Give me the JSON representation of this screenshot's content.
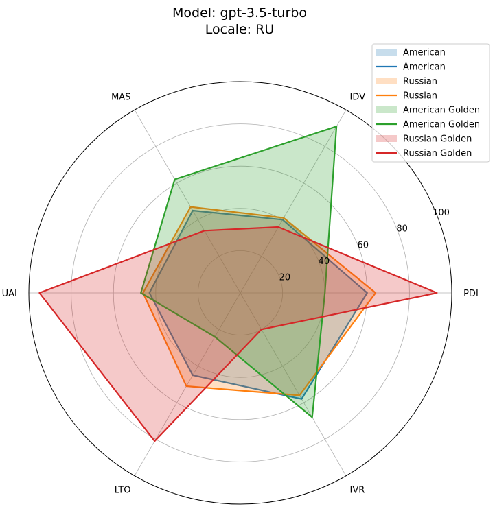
{
  "chart_data": {
    "type": "radar",
    "title_lines": [
      "Model: gpt-3.5-turbo",
      "Locale: RU"
    ],
    "axes": [
      "PDI",
      "IDV",
      "MAS",
      "UAI",
      "LTO",
      "IVR"
    ],
    "rlim": [
      0,
      100
    ],
    "r_ticks": [
      20,
      40,
      60,
      80,
      100
    ],
    "grid": true,
    "legend_position": "top-right",
    "series": [
      {
        "name": "American",
        "color": "#1f77b4",
        "values": [
          60,
          40,
          45,
          43,
          45,
          58
        ]
      },
      {
        "name": "Russian",
        "color": "#ff7f0e",
        "values": [
          64,
          41,
          47,
          46,
          51,
          56
        ]
      },
      {
        "name": "American Golden",
        "color": "#2ca02c",
        "values": [
          40,
          91,
          62,
          47,
          24,
          68
        ]
      },
      {
        "name": "Russian Golden",
        "color": "#d62728",
        "values": [
          93,
          36,
          34,
          95,
          81,
          20
        ]
      }
    ],
    "legend_entries": [
      "American",
      "American",
      "Russian",
      "Russian",
      "American Golden",
      "American Golden",
      "Russian Golden",
      "Russian Golden"
    ]
  }
}
